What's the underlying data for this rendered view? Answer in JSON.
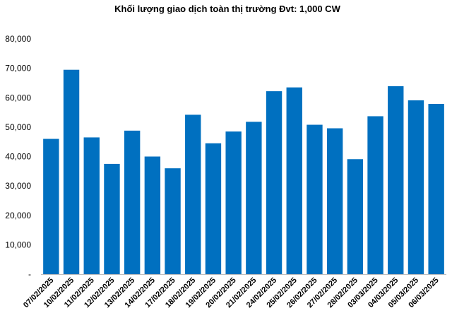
{
  "chart_data": {
    "type": "bar",
    "title": "Khối lượng giao dịch toàn thị trường Đvt: 1,000 CW",
    "xlabel": "",
    "ylabel": "",
    "ylim": [
      0,
      80000
    ],
    "yticks": [
      0,
      10000,
      20000,
      30000,
      40000,
      50000,
      60000,
      70000,
      80000
    ],
    "ytick_labels": [
      "-",
      "10,000",
      "20,000",
      "30,000",
      "40,000",
      "50,000",
      "60,000",
      "70,000",
      "80,000"
    ],
    "grid": false,
    "legend": "none",
    "bar_color": "#0070C0",
    "categories": [
      "07/02/2025",
      "10/02/2025",
      "11/02/2025",
      "12/02/2025",
      "13/02/2025",
      "14/02/2025",
      "17/02/2025",
      "18/02/2025",
      "19/02/2025",
      "20/02/2025",
      "21/02/2025",
      "24/02/2025",
      "25/02/2025",
      "26/02/2025",
      "27/02/2025",
      "28/02/2025",
      "03/03/2025",
      "04/03/2025",
      "05/03/2025",
      "06/03/2025"
    ],
    "values": [
      46000,
      69500,
      46500,
      37500,
      48800,
      40000,
      36000,
      54200,
      44500,
      48500,
      51800,
      62200,
      63500,
      50800,
      49600,
      39100,
      53700,
      63900,
      59100,
      57900
    ]
  }
}
